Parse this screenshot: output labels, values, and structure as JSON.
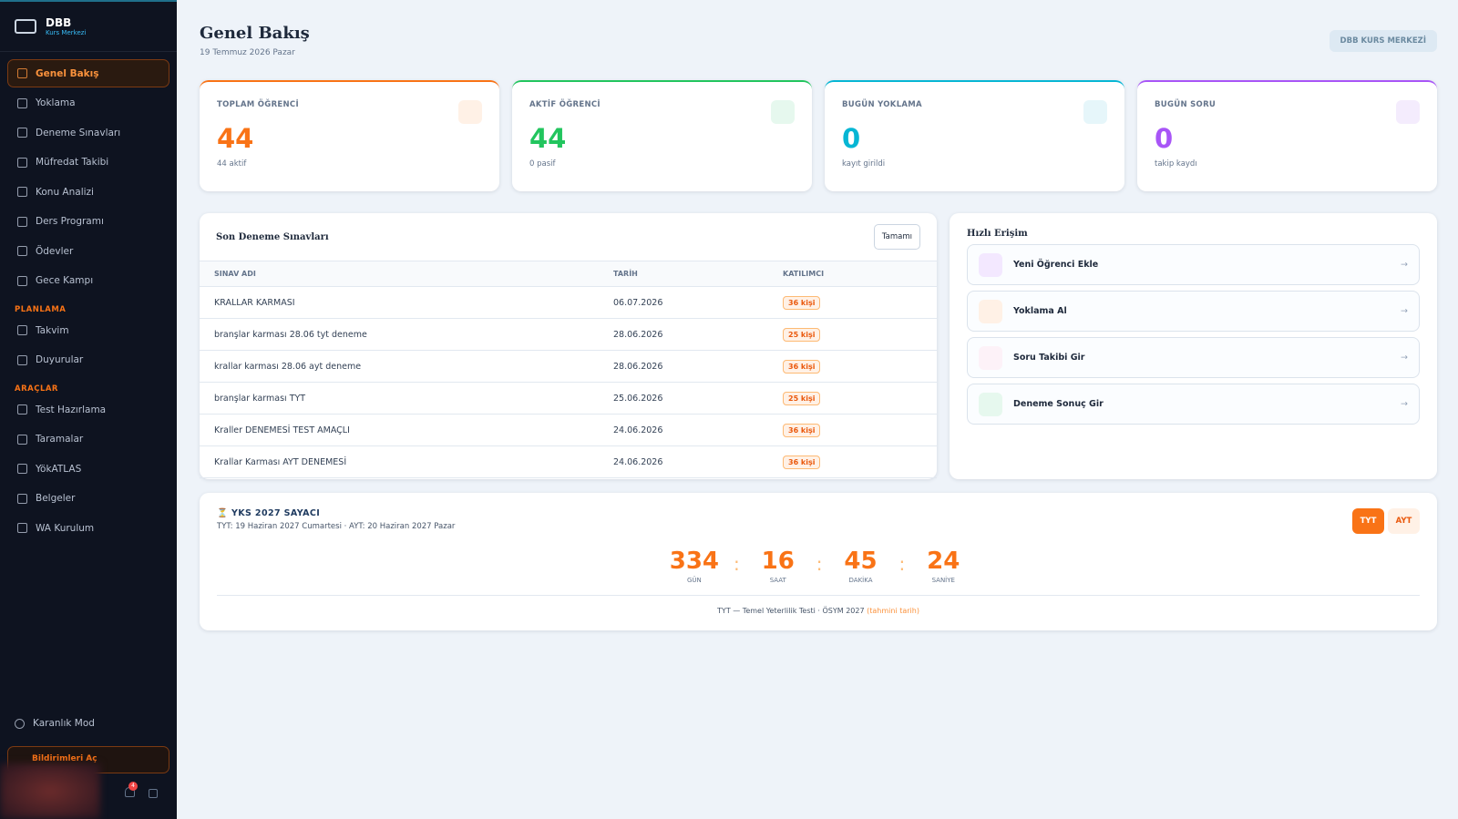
{
  "sidebar": {
    "brand": {
      "title": "DBB",
      "subtitle": "Kurs Merkezi"
    },
    "nav": [
      "Genel Bakış",
      "Yoklama",
      "Deneme Sınavları",
      "Müfredat Takibi",
      "Konu Analizi",
      "Ders Programı",
      "Ödevler",
      "Gece Kampı"
    ],
    "sections": [
      {
        "title": "PLANLAMA",
        "items": [
          "Takvim",
          "Duyurular"
        ]
      },
      {
        "title": "ARAÇLAR",
        "items": [
          "Test Hazırlama",
          "Taramalar",
          "YökATLAS",
          "Belgeler",
          "WA Kurulum"
        ]
      }
    ],
    "dark_mode": "Karanlık Mod",
    "notify_button": "Bildirimleri Aç",
    "notification_count": "4"
  },
  "header": {
    "title": "Genel Bakış",
    "date": "19 Temmuz 2026 Pazar",
    "badge": "DBB KURS MERKEZİ"
  },
  "stats": [
    {
      "label": "TOPLAM ÖĞRENCİ",
      "value": 44,
      "note": "44 aktif"
    },
    {
      "label": "AKTİF ÖĞRENCİ",
      "value": 44,
      "note": "0 pasif"
    },
    {
      "label": "BUGÜN YOKLAMA",
      "value": 0,
      "note": "kayıt girildi"
    },
    {
      "label": "BUGÜN SORU",
      "value": 0,
      "note": "takip kaydı"
    }
  ],
  "exams": {
    "title": "Son Deneme Sınavları",
    "button": "Tamamı",
    "columns": [
      "SINAV ADI",
      "TARİH",
      "KATILIMCI"
    ],
    "rows": [
      [
        "KRALLAR KARMASI",
        "06.07.2026",
        "36 kişi"
      ],
      [
        "branşlar karması 28.06 tyt deneme",
        "28.06.2026",
        "25 kişi"
      ],
      [
        "krallar karması 28.06 ayt deneme",
        "28.06.2026",
        "36 kişi"
      ],
      [
        "branşlar karması TYT",
        "25.06.2026",
        "25 kişi"
      ],
      [
        "Kraller DENEMESİ TEST AMAÇLI",
        "24.06.2026",
        "36 kişi"
      ],
      [
        "Krallar Karması AYT DENEMESİ",
        "24.06.2026",
        "36 kişi"
      ]
    ]
  },
  "quick_access": {
    "title": "Hızlı Erişim",
    "arrow": "→",
    "items": [
      "Yeni Öğrenci Ekle",
      "Yoklama Al",
      "Soru Takibi Gir",
      "Deneme Sonuç Gir"
    ]
  },
  "countdown": {
    "title": "YKS 2027 SAYACI",
    "subtitle": "TYT: 19 Haziran 2027 Cumartesi · AYT: 20 Haziran 2027 Pazar",
    "tabs": [
      "TYT",
      "AYT"
    ],
    "separator": ":",
    "units": [
      {
        "value": 334,
        "label": "GÜN"
      },
      {
        "value": 16,
        "label": "SAAT"
      },
      {
        "value": 45,
        "label": "DAKİKA"
      },
      {
        "value": 24,
        "label": "SANİYE"
      }
    ],
    "footer": "TYT — Temel Yeterlilik Testi · ÖSYM 2027",
    "footer_note": "(tahmini tarih)"
  }
}
